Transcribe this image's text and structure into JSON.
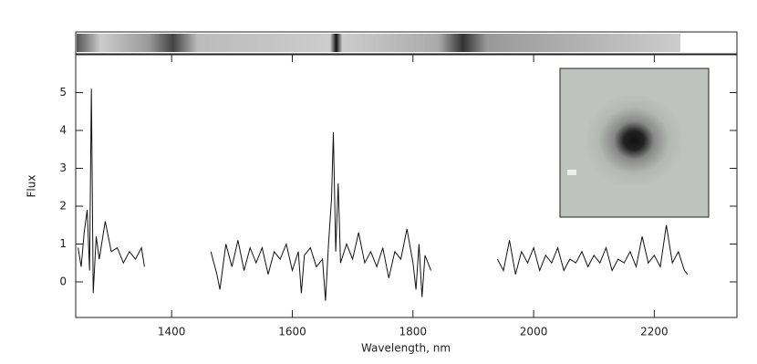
{
  "chart_data": {
    "type": "line",
    "x_label": "Wavelength, nm",
    "y_label": "Flux",
    "color": "#111111",
    "x": [
      1245,
      1250,
      1255,
      1260,
      1264,
      1267,
      1270,
      1275,
      1280,
      1290,
      1300,
      1310,
      1320,
      1330,
      1340,
      1350,
      1355,
      1400,
      1465,
      1475,
      1480,
      1490,
      1500,
      1510,
      1520,
      1530,
      1540,
      1550,
      1560,
      1570,
      1580,
      1590,
      1600,
      1610,
      1615,
      1620,
      1630,
      1640,
      1650,
      1655,
      1660,
      1665,
      1668,
      1672,
      1676,
      1680,
      1690,
      1700,
      1710,
      1720,
      1730,
      1740,
      1750,
      1760,
      1770,
      1780,
      1790,
      1800,
      1805,
      1810,
      1815,
      1820,
      1830,
      1885,
      1940,
      1950,
      1960,
      1970,
      1980,
      1990,
      2000,
      2010,
      2020,
      2030,
      2040,
      2050,
      2060,
      2070,
      2080,
      2090,
      2100,
      2110,
      2120,
      2130,
      2140,
      2150,
      2160,
      2170,
      2180,
      2190,
      2200,
      2210,
      2220,
      2230,
      2240,
      2250,
      2255
    ],
    "values": [
      0.9,
      0.4,
      1.3,
      1.9,
      0.3,
      5.1,
      -0.3,
      1.2,
      0.6,
      1.6,
      0.8,
      0.9,
      0.5,
      0.8,
      0.6,
      0.9,
      0.4,
      null,
      0.8,
      0.2,
      -0.2,
      1.0,
      0.4,
      1.1,
      0.3,
      0.9,
      0.5,
      0.9,
      0.2,
      0.8,
      0.6,
      1.0,
      0.3,
      0.8,
      -0.3,
      0.7,
      0.9,
      0.4,
      0.6,
      -0.5,
      1.0,
      2.2,
      3.95,
      0.8,
      2.6,
      0.5,
      1.0,
      0.6,
      1.3,
      0.5,
      0.8,
      0.4,
      0.9,
      0.1,
      0.8,
      0.6,
      1.4,
      0.5,
      -0.2,
      1.0,
      -0.4,
      0.7,
      0.3,
      null,
      0.6,
      0.3,
      1.1,
      0.2,
      0.8,
      0.5,
      0.9,
      0.3,
      0.7,
      0.5,
      0.9,
      0.3,
      0.6,
      0.5,
      0.8,
      0.4,
      0.7,
      0.5,
      0.9,
      0.3,
      0.6,
      0.5,
      0.8,
      0.4,
      1.2,
      0.5,
      0.7,
      0.4,
      1.5,
      0.5,
      0.8,
      0.3,
      0.2
    ],
    "xlim": [
      1241,
      2337
    ],
    "ylim": [
      -0.94,
      6.0
    ],
    "xticks": [
      1400,
      1600,
      1800,
      2000,
      2200
    ],
    "yticks": [
      0,
      1,
      2,
      3,
      4,
      5
    ]
  }
}
